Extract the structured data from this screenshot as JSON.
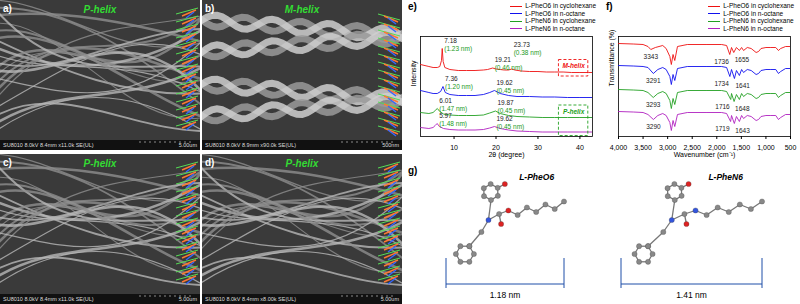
{
  "sem_images": [
    {
      "panel_label": "a)",
      "title": "P-helix",
      "footer": "SU8010 8.0kV 8.4mm x11.0k SE(UL)",
      "scale_bar": "5.00um"
    },
    {
      "panel_label": "b)",
      "title": "M-helix",
      "footer": "SU8010 8.0kV 8.9mm x90.0k SE(UL)",
      "scale_bar": "500nm"
    },
    {
      "panel_label": "c)",
      "title": "P-helix",
      "footer": "SU8010 8.0kV 8.4mm x11.0k SE(UL)",
      "scale_bar": "5.00um"
    },
    {
      "panel_label": "d)",
      "title": "P-helix",
      "footer": "SU8010 8.0kV 8.4mm x8.00k SE(UL)",
      "scale_bar": "5.00um"
    }
  ],
  "chart_data": [
    {
      "type": "line",
      "panel_label": "e)",
      "x_label": "2θ (degree)",
      "y_label": "Intensity",
      "xlim": [
        2,
        43
      ],
      "xticks": [
        10,
        20,
        30,
        40
      ],
      "ylim": [
        0,
        100
      ],
      "yticks": [],
      "tick_labels": "x",
      "grid": false,
      "legend": "top-right",
      "series": [
        {
          "name": "L-PheO6 in cyclohexane",
          "color": "#ee1111",
          "x": [
            2,
            4,
            5,
            6,
            6.6,
            7.0,
            7.18,
            7.4,
            7.8,
            9,
            11,
            13,
            15,
            17,
            18,
            19.21,
            20,
            21,
            22,
            23,
            23.73,
            24.5,
            26,
            28,
            30,
            32,
            34,
            36,
            38,
            40,
            42,
            43
          ],
          "values": [
            72,
            70,
            69,
            69,
            70,
            76,
            88,
            75,
            69,
            67,
            66,
            66,
            66,
            66.5,
            67,
            68.5,
            67.5,
            67,
            66.5,
            66.5,
            67.5,
            66.5,
            65.5,
            65,
            65,
            64.5,
            64.5,
            64.5,
            64,
            64,
            64,
            64
          ],
          "peaks": [
            {
              "value": 7.18,
              "d_label": "(1.23 nm)"
            },
            {
              "value": 19.21,
              "d_label": "(0.46 nm)"
            },
            {
              "value": 23.73,
              "d_label": "(0.38 nm)"
            }
          ]
        },
        {
          "name": "L-PheO6 in n-octane",
          "color": "#1111ee",
          "x": [
            2,
            4,
            5,
            6,
            6.8,
            7.36,
            7.9,
            9,
            11,
            13,
            15,
            17,
            18.5,
            19.62,
            21,
            23,
            25,
            28,
            31,
            34,
            37,
            40,
            43
          ],
          "values": [
            46,
            44,
            43,
            43,
            45,
            50,
            44,
            42,
            41,
            41,
            41,
            42,
            44,
            46,
            43,
            41,
            40,
            40,
            39.5,
            39.5,
            39,
            39,
            39
          ],
          "peaks": [
            {
              "value": 7.36,
              "d_label": "(1.20 nm)"
            },
            {
              "value": 19.62,
              "d_label": "(0.45 nm)"
            }
          ]
        },
        {
          "name": "L-PheN6 in cyclohexane",
          "color": "#22a022",
          "x": [
            2,
            4,
            5,
            5.5,
            6.01,
            6.6,
            7.5,
            9,
            11,
            13,
            15,
            17,
            18.5,
            19.87,
            21,
            23,
            25,
            28,
            31,
            34,
            37,
            40,
            43
          ],
          "values": [
            24,
            23,
            24,
            26,
            28,
            25,
            22.5,
            21.5,
            21,
            21,
            21,
            21.5,
            23.5,
            25.5,
            23,
            21,
            20,
            19.5,
            19,
            19,
            19,
            19,
            19
          ],
          "peaks": [
            {
              "value": 6.01,
              "d_label": "(1.47 nm)"
            },
            {
              "value": 19.87,
              "d_label": "(0.45 nm)"
            }
          ]
        },
        {
          "name": "L-PheN6 in n-octane",
          "color": "#b020c0",
          "x": [
            2,
            4,
            5,
            5.5,
            5.97,
            6.5,
            7.5,
            9,
            11,
            13,
            15,
            17,
            18.5,
            19.62,
            21,
            23,
            25,
            28,
            31,
            34,
            37,
            40,
            43
          ],
          "values": [
            9,
            8,
            9,
            11,
            13,
            10,
            8,
            7,
            6.5,
            6.5,
            6.5,
            7,
            8.5,
            10,
            8,
            6.5,
            5.5,
            5,
            4.5,
            4.5,
            4.5,
            4.5,
            4.5
          ],
          "peaks": [
            {
              "value": 5.97,
              "d_label": "(1.48 nm)"
            },
            {
              "value": 19.62,
              "d_label": "(0.45 nm)"
            }
          ]
        }
      ],
      "annotations": [
        {
          "label": "M-helix",
          "color": "#ee1111",
          "series": [
            "L-PheO6 in cyclohexane"
          ],
          "x_range": [
            35,
            42
          ]
        },
        {
          "label": "P-helix",
          "color": "#22a022",
          "series": [
            "L-PheN6 in cyclohexane",
            "L-PheN6 in n-octane"
          ],
          "x_range": [
            35,
            42
          ]
        }
      ]
    },
    {
      "type": "line",
      "panel_label": "f)",
      "x_label": "Wavenumber (cm⁻¹)",
      "y_label": "Transmittance (%)",
      "xlim": [
        4000,
        500
      ],
      "xticks": [
        4000,
        3500,
        3000,
        2500,
        2000,
        1500,
        1000,
        500
      ],
      "ylim": [
        0,
        100
      ],
      "yticks": [],
      "tick_labels": "x",
      "grid": false,
      "legend": "top-right",
      "series": [
        {
          "name": "L-PheO6 in cyclohexane",
          "color": "#ee1111",
          "x": [
            4000,
            3700,
            3500,
            3400,
            3343,
            3250,
            3100,
            3030,
            2955,
            2925,
            2890,
            2855,
            2800,
            2600,
            2200,
            1900,
            1800,
            1736,
            1700,
            1655,
            1600,
            1540,
            1495,
            1455,
            1380,
            1300,
            1200,
            1150,
            1100,
            1000,
            900,
            800,
            745,
            700,
            600,
            500
          ],
          "values": [
            93,
            92.5,
            92,
            90,
            87,
            89,
            91,
            88,
            80,
            72,
            82,
            76,
            90,
            92,
            92,
            92,
            91,
            82,
            89,
            84,
            89,
            86,
            89,
            86,
            89,
            88,
            84,
            85,
            88,
            89,
            89,
            89,
            86,
            88,
            90,
            90
          ],
          "peaks": [
            {
              "value": 3343
            },
            {
              "value": 1736
            },
            {
              "value": 1655
            }
          ]
        },
        {
          "name": "L-PheO6 in n-octane",
          "color": "#1111ee",
          "x": [
            4000,
            3700,
            3500,
            3400,
            3291,
            3200,
            3100,
            3030,
            2955,
            2925,
            2890,
            2855,
            2800,
            2600,
            2200,
            1900,
            1800,
            1734,
            1700,
            1641,
            1600,
            1540,
            1495,
            1455,
            1380,
            1300,
            1200,
            1150,
            1100,
            1000,
            900,
            800,
            745,
            700,
            600,
            500
          ],
          "values": [
            71,
            70.5,
            70,
            69,
            63,
            67,
            69,
            67,
            60,
            52,
            62,
            56,
            68,
            70,
            70,
            70,
            69,
            60,
            67,
            58,
            66,
            61,
            67,
            64,
            67,
            66,
            62,
            63,
            66,
            67,
            67,
            67,
            63,
            65,
            68,
            68
          ],
          "peaks": [
            {
              "value": 3291
            },
            {
              "value": 1734
            },
            {
              "value": 1641
            }
          ]
        },
        {
          "name": "L-PheN6 in cyclohexane",
          "color": "#22a022",
          "x": [
            4000,
            3700,
            3500,
            3400,
            3293,
            3200,
            3100,
            3030,
            2955,
            2925,
            2890,
            2855,
            2800,
            2600,
            2200,
            1900,
            1800,
            1716,
            1700,
            1648,
            1600,
            1540,
            1495,
            1455,
            1380,
            1300,
            1200,
            1150,
            1100,
            1000,
            900,
            800,
            745,
            700,
            600,
            500
          ],
          "values": [
            47,
            46.5,
            46,
            44,
            39,
            43,
            45,
            43,
            36,
            28,
            38,
            32,
            44,
            46,
            46,
            46,
            45,
            37,
            43,
            35,
            42,
            37,
            43,
            40,
            43,
            42,
            38,
            39,
            42,
            43,
            43,
            43,
            39,
            41,
            44,
            44
          ],
          "peaks": [
            {
              "value": 3293
            },
            {
              "value": 1716
            },
            {
              "value": 1648
            }
          ]
        },
        {
          "name": "L-PheN6 in n-octane",
          "color": "#b020c0",
          "x": [
            4000,
            3700,
            3500,
            3400,
            3290,
            3200,
            3100,
            3030,
            2955,
            2925,
            2890,
            2855,
            2800,
            2600,
            2200,
            1900,
            1800,
            1719,
            1700,
            1643,
            1600,
            1540,
            1495,
            1455,
            1380,
            1300,
            1200,
            1150,
            1100,
            1000,
            900,
            800,
            745,
            700,
            600,
            500
          ],
          "values": [
            25,
            24.5,
            24,
            22,
            17,
            21,
            23,
            21,
            14,
            6,
            16,
            10,
            22,
            24,
            24,
            24,
            23,
            15,
            21,
            13,
            20,
            15,
            21,
            18,
            21,
            20,
            16,
            17,
            20,
            21,
            21,
            21,
            17,
            19,
            22,
            22
          ],
          "peaks": [
            {
              "value": 3290
            },
            {
              "value": 1719
            },
            {
              "value": 1643
            }
          ]
        }
      ]
    }
  ],
  "structures": {
    "panel_label": "g)",
    "molecules": [
      {
        "name": "L-PheO6",
        "length": 1.18,
        "length_label": "1.18 nm"
      },
      {
        "name": "L-PheN6",
        "length": 1.41,
        "length_label": "1.41 nm"
      }
    ]
  }
}
